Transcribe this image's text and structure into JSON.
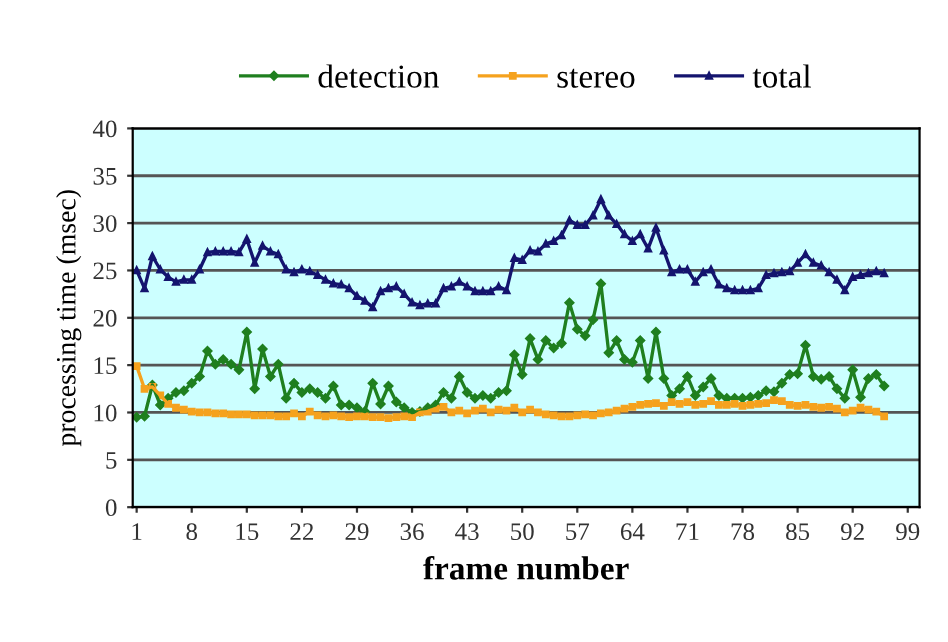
{
  "chart_data": {
    "type": "line",
    "xlabel": "frame number",
    "ylabel": "processing time (msec)",
    "x": [
      1,
      2,
      3,
      4,
      5,
      6,
      7,
      8,
      9,
      10,
      11,
      12,
      13,
      14,
      15,
      16,
      17,
      18,
      19,
      20,
      21,
      22,
      23,
      24,
      25,
      26,
      27,
      28,
      29,
      30,
      31,
      32,
      33,
      34,
      35,
      36,
      37,
      38,
      39,
      40,
      41,
      42,
      43,
      44,
      45,
      46,
      47,
      48,
      49,
      50,
      51,
      52,
      53,
      54,
      55,
      56,
      57,
      58,
      59,
      60,
      61,
      62,
      63,
      64,
      65,
      66,
      67,
      68,
      69,
      70,
      71,
      72,
      73,
      74,
      75,
      76,
      77,
      78,
      79,
      80,
      81,
      82,
      83,
      84,
      85,
      86,
      87,
      88,
      89,
      90,
      91,
      92,
      93,
      94,
      95,
      96
    ],
    "series": [
      {
        "name": "detection",
        "color": "#1f7f1f",
        "marker": "diamond",
        "values": [
          9.5,
          9.6,
          12.9,
          10.8,
          11.5,
          12.1,
          12.3,
          13.1,
          13.8,
          16.5,
          15.1,
          15.6,
          15.1,
          14.5,
          18.5,
          12.5,
          16.7,
          13.8,
          15.1,
          11.5,
          13.1,
          12.1,
          12.5,
          12.1,
          11.5,
          12.8,
          10.8,
          10.8,
          10.5,
          10.1,
          13.1,
          10.9,
          12.8,
          11.1,
          10.5,
          10.0,
          10.1,
          10.5,
          10.8,
          12.1,
          11.5,
          13.8,
          12.1,
          11.5,
          11.8,
          11.5,
          12.1,
          12.3,
          16.1,
          14.0,
          17.8,
          15.6,
          17.6,
          16.8,
          17.3,
          21.6,
          18.8,
          18.1,
          19.8,
          23.6,
          16.3,
          17.6,
          15.6,
          15.3,
          17.6,
          13.6,
          18.5,
          13.6,
          11.8,
          12.5,
          13.8,
          11.8,
          12.7,
          13.6,
          11.8,
          11.5,
          11.5,
          11.5,
          11.6,
          11.8,
          12.3,
          12.2,
          13.1,
          14.0,
          14.1,
          17.1,
          13.8,
          13.5,
          13.8,
          12.5,
          11.5,
          14.5,
          11.6,
          13.6,
          14.0,
          12.8
        ]
      },
      {
        "name": "stereo",
        "color": "#f5a21e",
        "marker": "square",
        "values": [
          14.9,
          12.5,
          12.7,
          11.8,
          10.9,
          10.5,
          10.3,
          10.1,
          10.0,
          10.0,
          9.9,
          9.9,
          9.8,
          9.8,
          9.8,
          9.7,
          9.7,
          9.7,
          9.6,
          9.6,
          9.9,
          9.6,
          10.1,
          9.7,
          9.6,
          9.7,
          9.6,
          9.5,
          9.6,
          9.6,
          9.5,
          9.5,
          9.4,
          9.5,
          9.6,
          9.5,
          10.0,
          10.1,
          10.4,
          10.6,
          10.0,
          10.2,
          9.9,
          10.2,
          10.4,
          10.0,
          10.3,
          10.2,
          10.5,
          10.0,
          10.3,
          10.0,
          9.8,
          9.7,
          9.6,
          9.6,
          9.7,
          9.8,
          9.7,
          9.9,
          10.0,
          10.2,
          10.4,
          10.6,
          10.8,
          10.9,
          11.0,
          10.7,
          11.1,
          10.9,
          11.1,
          10.8,
          10.9,
          11.2,
          10.8,
          10.8,
          10.9,
          10.7,
          10.8,
          10.9,
          11.0,
          11.3,
          11.2,
          10.8,
          10.7,
          10.8,
          10.6,
          10.5,
          10.6,
          10.4,
          10.0,
          10.2,
          10.5,
          10.3,
          10.1,
          9.6
        ]
      },
      {
        "name": "total",
        "color": "#14146e",
        "marker": "triangle",
        "values": [
          25.0,
          23.1,
          26.5,
          25.1,
          24.3,
          23.8,
          24.0,
          24.0,
          25.1,
          26.9,
          27.0,
          27.0,
          27.0,
          26.9,
          28.3,
          25.8,
          27.6,
          27.0,
          26.7,
          25.1,
          24.8,
          25.1,
          24.9,
          24.5,
          24.0,
          23.6,
          23.5,
          23.1,
          22.3,
          21.8,
          21.1,
          22.8,
          23.1,
          23.3,
          22.5,
          21.6,
          21.3,
          21.5,
          21.5,
          23.1,
          23.3,
          23.8,
          23.3,
          22.8,
          22.8,
          22.8,
          23.3,
          22.9,
          26.3,
          26.1,
          27.1,
          27.0,
          27.8,
          28.1,
          28.7,
          30.3,
          29.8,
          29.8,
          30.8,
          32.5,
          30.8,
          29.9,
          28.8,
          28.1,
          28.8,
          27.3,
          29.5,
          27.1,
          24.8,
          25.1,
          25.1,
          23.8,
          24.8,
          25.1,
          23.5,
          23.1,
          22.9,
          22.9,
          22.9,
          23.1,
          24.5,
          24.7,
          24.8,
          24.9,
          25.8,
          26.7,
          25.8,
          25.5,
          24.8,
          24.0,
          22.9,
          24.3,
          24.5,
          24.7,
          24.9,
          24.7
        ]
      }
    ],
    "xlim": [
      0.5,
      100.5
    ],
    "xticks": [
      1,
      8,
      15,
      22,
      29,
      36,
      43,
      50,
      57,
      64,
      71,
      78,
      85,
      92,
      99
    ],
    "ylim": [
      0,
      40
    ],
    "yticks": [
      0,
      5,
      10,
      15,
      20,
      25,
      30,
      35,
      40
    ],
    "grid": "y",
    "legend": "top",
    "line_style": "solid"
  }
}
